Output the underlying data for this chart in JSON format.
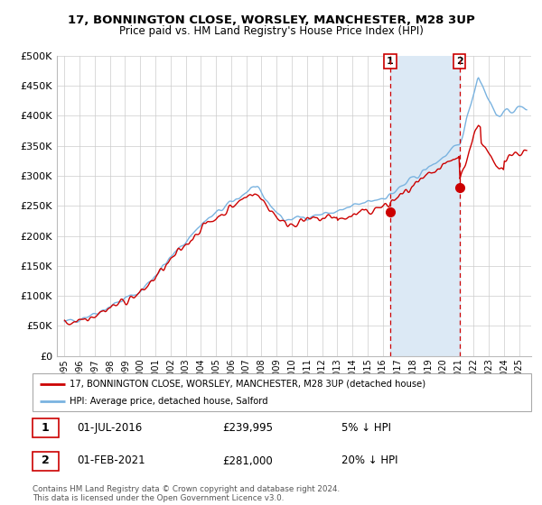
{
  "title1": "17, BONNINGTON CLOSE, WORSLEY, MANCHESTER, M28 3UP",
  "title2": "Price paid vs. HM Land Registry's House Price Index (HPI)",
  "legend_line1": "17, BONNINGTON CLOSE, WORSLEY, MANCHESTER, M28 3UP (detached house)",
  "legend_line2": "HPI: Average price, detached house, Salford",
  "annotation1": {
    "label": "1",
    "date": "01-JUL-2016",
    "price": "£239,995",
    "pct": "5% ↓ HPI"
  },
  "annotation2": {
    "label": "2",
    "date": "01-FEB-2021",
    "price": "£281,000",
    "pct": "20% ↓ HPI"
  },
  "footer": "Contains HM Land Registry data © Crown copyright and database right 2024.\nThis data is licensed under the Open Government Licence v3.0.",
  "hpi_color": "#7ab3e0",
  "price_color": "#cc0000",
  "annotation_color": "#cc0000",
  "shade_color": "#dce9f5",
  "background_color": "#ffffff",
  "grid_color": "#cccccc",
  "ylim": [
    0,
    500000
  ],
  "yticks": [
    0,
    50000,
    100000,
    150000,
    200000,
    250000,
    300000,
    350000,
    400000,
    450000,
    500000
  ],
  "sale1_x": 2016.5,
  "sale1_y": 239995,
  "sale2_x": 2021.08,
  "sale2_y": 281000,
  "xlim_left": 1994.5,
  "xlim_right": 2025.8
}
